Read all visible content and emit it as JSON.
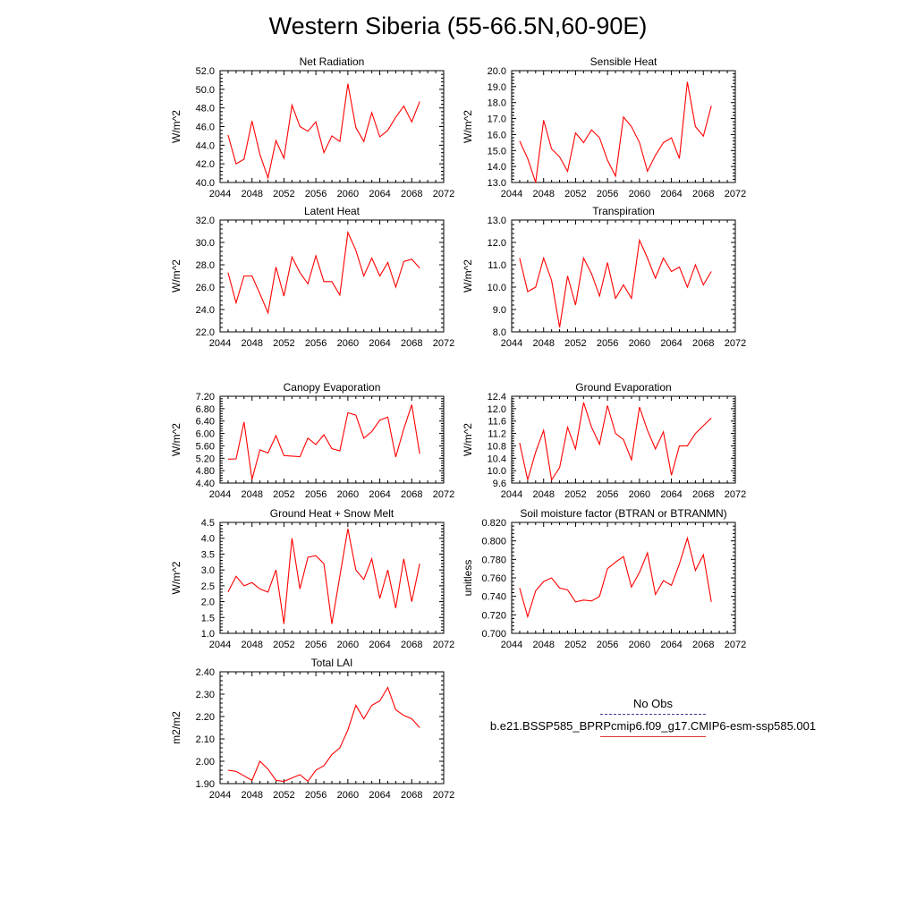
{
  "title": "Western Siberia (55-66.5N,60-90E)",
  "legend": {
    "obs_label": "No Obs",
    "model_label": "b.e21.BSSP585_BPRPcmip6.f09_g17.CMIP6-esm-ssp585.001",
    "obs_color": "#3b3b9a",
    "model_color": "#ff0000"
  },
  "chart_data": [
    {
      "type": "line",
      "title": "Net Radiation",
      "ylabel": "W/m^2",
      "xlabel": "",
      "xlim": [
        2044,
        2072
      ],
      "ylim": [
        40.0,
        52.0
      ],
      "xticks": [
        2044,
        2048,
        2052,
        2056,
        2060,
        2064,
        2068,
        2072
      ],
      "yticks": [
        "40.0",
        "42.0",
        "44.0",
        "46.0",
        "48.0",
        "50.0",
        "52.0"
      ],
      "series": [
        {
          "color": "#ff0000",
          "x": [
            2045,
            2046,
            2047,
            2048,
            2049,
            2050,
            2051,
            2052,
            2053,
            2054,
            2055,
            2056,
            2057,
            2058,
            2059,
            2060,
            2061,
            2062,
            2063,
            2064,
            2065,
            2066,
            2067,
            2068,
            2069
          ],
          "values": [
            45.1,
            42.0,
            42.5,
            46.6,
            43.0,
            40.5,
            44.5,
            42.6,
            48.3,
            46.0,
            45.5,
            46.5,
            43.2,
            45.0,
            44.4,
            50.6,
            45.9,
            44.4,
            47.5,
            44.9,
            45.6,
            47.0,
            48.2,
            46.5,
            48.7
          ]
        }
      ]
    },
    {
      "type": "line",
      "title": "Sensible Heat",
      "ylabel": "W/m^2",
      "xlabel": "",
      "xlim": [
        2044,
        2072
      ],
      "ylim": [
        13.0,
        20.0
      ],
      "xticks": [
        2044,
        2048,
        2052,
        2056,
        2060,
        2064,
        2068,
        2072
      ],
      "yticks": [
        "13.0",
        "14.0",
        "15.0",
        "16.0",
        "17.0",
        "18.0",
        "19.0",
        "20.0"
      ],
      "series": [
        {
          "color": "#ff0000",
          "x": [
            2045,
            2046,
            2047,
            2048,
            2049,
            2050,
            2051,
            2052,
            2053,
            2054,
            2055,
            2056,
            2057,
            2058,
            2059,
            2060,
            2061,
            2062,
            2063,
            2064,
            2065,
            2066,
            2067,
            2068,
            2069
          ],
          "values": [
            15.6,
            14.5,
            13.0,
            16.9,
            15.1,
            14.6,
            13.7,
            16.1,
            15.5,
            16.3,
            15.8,
            14.4,
            13.4,
            17.1,
            16.5,
            15.5,
            13.7,
            14.7,
            15.5,
            15.8,
            14.5,
            19.3,
            16.5,
            15.9,
            17.8
          ]
        }
      ]
    },
    {
      "type": "line",
      "title": "Latent Heat",
      "ylabel": "W/m^2",
      "xlabel": "",
      "xlim": [
        2044,
        2072
      ],
      "ylim": [
        22.0,
        32.0
      ],
      "xticks": [
        2044,
        2048,
        2052,
        2056,
        2060,
        2064,
        2068,
        2072
      ],
      "yticks": [
        "22.0",
        "24.0",
        "26.0",
        "28.0",
        "30.0",
        "32.0"
      ],
      "series": [
        {
          "color": "#ff0000",
          "x": [
            2045,
            2046,
            2047,
            2048,
            2049,
            2050,
            2051,
            2052,
            2053,
            2054,
            2055,
            2056,
            2057,
            2058,
            2059,
            2060,
            2061,
            2062,
            2063,
            2064,
            2065,
            2066,
            2067,
            2068,
            2069
          ],
          "values": [
            27.3,
            24.6,
            27.0,
            27.0,
            25.4,
            23.7,
            27.8,
            25.2,
            28.7,
            27.3,
            26.3,
            28.8,
            26.5,
            26.5,
            25.3,
            30.9,
            29.3,
            27.0,
            28.6,
            27.0,
            28.2,
            26.0,
            28.3,
            28.5,
            27.7
          ]
        }
      ]
    },
    {
      "type": "line",
      "title": "Transpiration",
      "ylabel": "W/m^2",
      "xlabel": "",
      "xlim": [
        2044,
        2072
      ],
      "ylim": [
        8.0,
        13.0
      ],
      "xticks": [
        2044,
        2048,
        2052,
        2056,
        2060,
        2064,
        2068,
        2072
      ],
      "yticks": [
        "8.0",
        "9.0",
        "10.0",
        "11.0",
        "12.0",
        "13.0"
      ],
      "series": [
        {
          "color": "#ff0000",
          "x": [
            2045,
            2046,
            2047,
            2048,
            2049,
            2050,
            2051,
            2052,
            2053,
            2054,
            2055,
            2056,
            2057,
            2058,
            2059,
            2060,
            2061,
            2062,
            2063,
            2064,
            2065,
            2066,
            2067,
            2068,
            2069
          ],
          "values": [
            11.3,
            9.8,
            10.0,
            11.3,
            10.3,
            8.2,
            10.5,
            9.2,
            11.3,
            10.6,
            9.6,
            11.1,
            9.5,
            10.1,
            9.5,
            12.1,
            11.3,
            10.4,
            11.3,
            10.7,
            10.9,
            10.0,
            11.0,
            10.1,
            10.7
          ]
        }
      ]
    },
    {
      "type": "line",
      "title": "Canopy Evaporation",
      "ylabel": "W/m^2",
      "xlabel": "",
      "xlim": [
        2044,
        2072
      ],
      "ylim": [
        4.4,
        7.2
      ],
      "xticks": [
        2044,
        2048,
        2052,
        2056,
        2060,
        2064,
        2068,
        2072
      ],
      "yticks": [
        "4.40",
        "4.80",
        "5.20",
        "5.60",
        "6.00",
        "6.40",
        "6.80",
        "7.20"
      ],
      "series": [
        {
          "color": "#ff0000",
          "x": [
            2045,
            2046,
            2047,
            2048,
            2049,
            2050,
            2051,
            2052,
            2053,
            2054,
            2055,
            2056,
            2057,
            2058,
            2059,
            2060,
            2061,
            2062,
            2063,
            2064,
            2065,
            2066,
            2067,
            2068,
            2069
          ],
          "values": [
            5.17,
            5.18,
            6.37,
            4.52,
            5.47,
            5.37,
            5.93,
            5.29,
            5.27,
            5.25,
            5.85,
            5.64,
            5.96,
            5.51,
            5.44,
            6.67,
            6.59,
            5.85,
            6.06,
            6.43,
            6.53,
            5.24,
            6.15,
            6.93,
            5.34
          ]
        }
      ]
    },
    {
      "type": "line",
      "title": "Ground Evaporation",
      "ylabel": "W/m^2",
      "xlabel": "",
      "xlim": [
        2044,
        2072
      ],
      "ylim": [
        9.6,
        12.4
      ],
      "xticks": [
        2044,
        2048,
        2052,
        2056,
        2060,
        2064,
        2068,
        2072
      ],
      "yticks": [
        "9.6",
        "10.0",
        "10.4",
        "10.8",
        "11.2",
        "11.6",
        "12.0",
        "12.4"
      ],
      "series": [
        {
          "color": "#ff0000",
          "x": [
            2045,
            2046,
            2047,
            2048,
            2049,
            2050,
            2051,
            2052,
            2053,
            2054,
            2055,
            2056,
            2057,
            2058,
            2059,
            2060,
            2061,
            2062,
            2063,
            2064,
            2065,
            2066,
            2067,
            2068,
            2069
          ],
          "values": [
            10.9,
            9.7,
            10.6,
            11.3,
            9.7,
            10.1,
            11.4,
            10.7,
            12.2,
            11.4,
            10.85,
            12.1,
            11.2,
            11.0,
            10.35,
            12.05,
            11.3,
            10.7,
            11.25,
            9.85,
            10.8,
            10.8,
            11.2,
            11.45,
            11.7
          ]
        }
      ]
    },
    {
      "type": "line",
      "title": "Ground Heat + Snow Melt",
      "ylabel": "W/m^2",
      "xlabel": "",
      "xlim": [
        2044,
        2072
      ],
      "ylim": [
        1.0,
        4.5
      ],
      "xticks": [
        2044,
        2048,
        2052,
        2056,
        2060,
        2064,
        2068,
        2072
      ],
      "yticks": [
        "1.0",
        "1.5",
        "2.0",
        "2.5",
        "3.0",
        "3.5",
        "4.0",
        "4.5"
      ],
      "series": [
        {
          "color": "#ff0000",
          "x": [
            2045,
            2046,
            2047,
            2048,
            2049,
            2050,
            2051,
            2052,
            2053,
            2054,
            2055,
            2056,
            2057,
            2058,
            2059,
            2060,
            2061,
            2062,
            2063,
            2064,
            2065,
            2066,
            2067,
            2068,
            2069
          ],
          "values": [
            2.3,
            2.8,
            2.5,
            2.6,
            2.4,
            2.3,
            3.0,
            1.3,
            4.0,
            2.4,
            3.4,
            3.45,
            3.2,
            1.3,
            2.8,
            4.3,
            3.0,
            2.7,
            3.35,
            2.1,
            3.0,
            1.8,
            3.35,
            2.0,
            3.2
          ]
        }
      ]
    },
    {
      "type": "line",
      "title": "Soil moisture factor (BTRAN or BTRANMN)",
      "ylabel": "unitless",
      "xlabel": "",
      "xlim": [
        2044,
        2072
      ],
      "ylim": [
        0.7,
        0.82
      ],
      "xticks": [
        2044,
        2048,
        2052,
        2056,
        2060,
        2064,
        2068,
        2072
      ],
      "yticks": [
        "0.700",
        "0.720",
        "0.740",
        "0.760",
        "0.780",
        "0.800",
        "0.820"
      ],
      "series": [
        {
          "color": "#ff0000",
          "x": [
            2045,
            2046,
            2047,
            2048,
            2049,
            2050,
            2051,
            2052,
            2053,
            2054,
            2055,
            2056,
            2057,
            2058,
            2059,
            2060,
            2061,
            2062,
            2063,
            2064,
            2065,
            2066,
            2067,
            2068,
            2069
          ],
          "values": [
            0.749,
            0.718,
            0.746,
            0.756,
            0.76,
            0.749,
            0.747,
            0.734,
            0.736,
            0.735,
            0.74,
            0.77,
            0.777,
            0.783,
            0.75,
            0.766,
            0.787,
            0.742,
            0.757,
            0.752,
            0.775,
            0.803,
            0.768,
            0.785,
            0.734
          ]
        }
      ]
    },
    {
      "type": "line",
      "title": "Total LAI",
      "ylabel": "m2/m2",
      "xlabel": "",
      "xlim": [
        2044,
        2072
      ],
      "ylim": [
        1.9,
        2.4
      ],
      "xticks": [
        2044,
        2048,
        2052,
        2056,
        2060,
        2064,
        2068,
        2072
      ],
      "yticks": [
        "1.90",
        "2.00",
        "2.10",
        "2.20",
        "2.30",
        "2.40"
      ],
      "series": [
        {
          "color": "#ff0000",
          "x": [
            2045,
            2046,
            2047,
            2048,
            2049,
            2050,
            2051,
            2052,
            2053,
            2054,
            2055,
            2056,
            2057,
            2058,
            2059,
            2060,
            2061,
            2062,
            2063,
            2064,
            2065,
            2066,
            2067,
            2068,
            2069
          ],
          "values": [
            1.96,
            1.955,
            1.935,
            1.915,
            2.0,
            1.965,
            1.915,
            1.91,
            1.925,
            1.94,
            1.91,
            1.96,
            1.98,
            2.03,
            2.06,
            2.14,
            2.25,
            2.19,
            2.25,
            2.27,
            2.33,
            2.23,
            2.205,
            2.19,
            2.15
          ]
        }
      ]
    }
  ]
}
